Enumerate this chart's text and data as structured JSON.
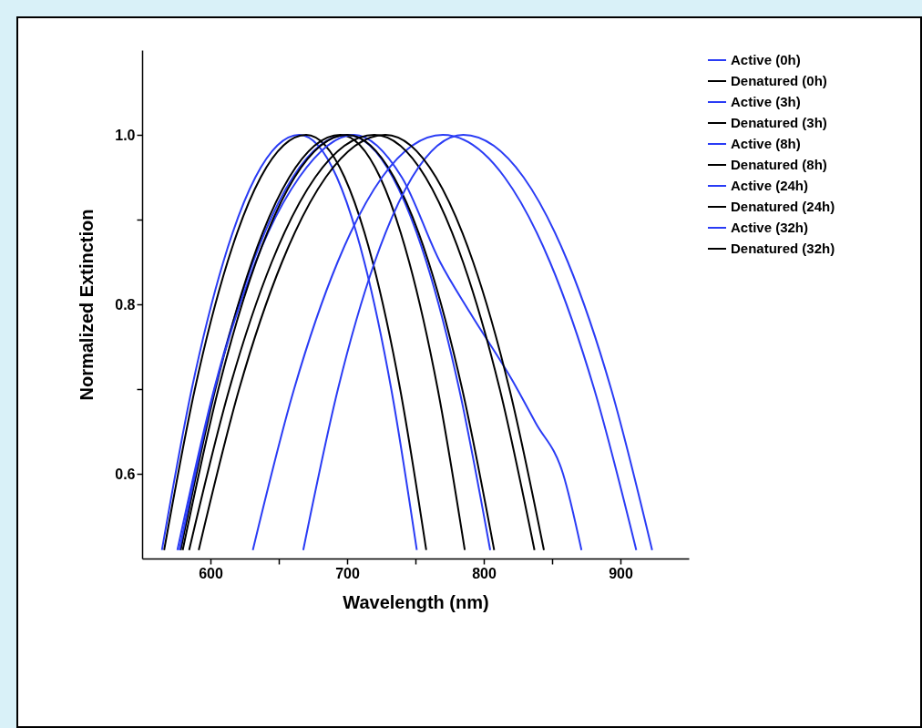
{
  "chart_data": {
    "type": "line",
    "xlabel": "Wavelength (nm)",
    "ylabel": "Normalized Extinction",
    "xlim": [
      550,
      950
    ],
    "ylim": [
      0.5,
      1.1
    ],
    "xticks": [
      600,
      {
        "value": 650,
        "label": null
      },
      700,
      {
        "value": 750,
        "label": null
      },
      800,
      {
        "value": 850,
        "label": null
      },
      900
    ],
    "yticks": [
      0.6,
      {
        "value": 0.7,
        "label": null
      },
      0.8,
      {
        "value": 0.9,
        "label": null
      },
      {
        "value": 1,
        "label": "1.0"
      }
    ],
    "grid": false,
    "legend": "top right",
    "series": [
      {
        "name": "Active (0h)",
        "color": "#2a3cf5",
        "x": [
          564.5,
          586.3,
          609.4,
          632.9,
          665,
          692.5,
          712.6,
          732.3,
          751.0
        ],
        "values": [
          0.51,
          0.7,
          0.85,
          0.95,
          1.0,
          0.95,
          0.85,
          0.7,
          0.51
        ]
      },
      {
        "name": " Denatured (0h)",
        "color": "#000000",
        "x": [
          566.1,
          588.6,
          612.5,
          636.8,
          670,
          698.1,
          718.7,
          738.8,
          757.9
        ],
        "values": [
          0.51,
          0.7,
          0.85,
          0.95,
          1.0,
          0.95,
          0.85,
          0.7,
          0.51
        ]
      },
      {
        "name": "Active (3h)",
        "color": "#2a3cf5",
        "x": [
          575.8,
          602.7,
          631.2,
          660.3,
          700,
          733.4,
          758,
          782,
          804.7
        ],
        "values": [
          0.51,
          0.7,
          0.85,
          0.95,
          1.0,
          0.95,
          0.85,
          0.7,
          0.51
        ]
      },
      {
        "name": "Denatured (3h)",
        "color": "#000000",
        "x": [
          578.2,
          603.6,
          630.3,
          657.7,
          695,
          724.1,
          745.4,
          766.3,
          786.1
        ],
        "values": [
          0.51,
          0.7,
          0.85,
          0.95,
          1.0,
          0.95,
          0.85,
          0.7,
          0.51
        ]
      },
      {
        "name": "Active (8h)",
        "color": "#2a3cf5",
        "x": [
          577.3,
          603,
          633,
          665,
          705,
          740,
          768,
          790,
          821,
          838,
          858,
          871.5
        ],
        "values": [
          0.51,
          0.7,
          0.85,
          0.95,
          1.0,
          0.95,
          0.85,
          0.79,
          0.71,
          0.66,
          0.6,
          0.51
        ]
      },
      {
        "name": "Denatured (8h)",
        "color": "#000000",
        "x": [
          579.7,
          605.8,
          633.4,
          661.6,
          700,
          734.3,
          759.6,
          784.2,
          807.6
        ],
        "values": [
          0.51,
          0.7,
          0.85,
          0.95,
          1.0,
          0.95,
          0.85,
          0.7,
          0.51
        ]
      },
      {
        "name": "Active (24h)",
        "color": "#2a3cf5",
        "x": [
          631.0,
          661.2,
          693.1,
          725.6,
          770,
          815.2,
          848.4,
          880.8,
          911.6
        ],
        "values": [
          0.51,
          0.7,
          0.85,
          0.95,
          1.0,
          0.95,
          0.85,
          0.7,
          0.51
        ]
      },
      {
        "name": "Denatured (24h)",
        "color": "#000000",
        "x": [
          584.4,
          613.8,
          644.9,
          676.7,
          720,
          757.4,
          784.8,
          811.7,
          837.1
        ],
        "values": [
          0.51,
          0.7,
          0.85,
          0.95,
          1.0,
          0.95,
          0.85,
          0.7,
          0.51
        ]
      },
      {
        "name": "Active (32h)",
        "color": "#2a3cf5",
        "x": [
          667.9,
          693.3,
          720.2,
          747.6,
          785,
          829.1,
          861.5,
          893.2,
          923.2
        ],
        "values": [
          0.51,
          0.7,
          0.85,
          0.95,
          1.0,
          0.95,
          0.85,
          0.7,
          0.51
        ]
      },
      {
        "name": "Denatured (32h)",
        "color": "#000000",
        "x": [
          591.4,
          621,
          652.4,
          684.4,
          728,
          765,
          792.2,
          818.8,
          844.0
        ],
        "values": [
          0.51,
          0.7,
          0.85,
          0.95,
          1.0,
          0.95,
          0.85,
          0.7,
          0.51
        ]
      }
    ]
  }
}
